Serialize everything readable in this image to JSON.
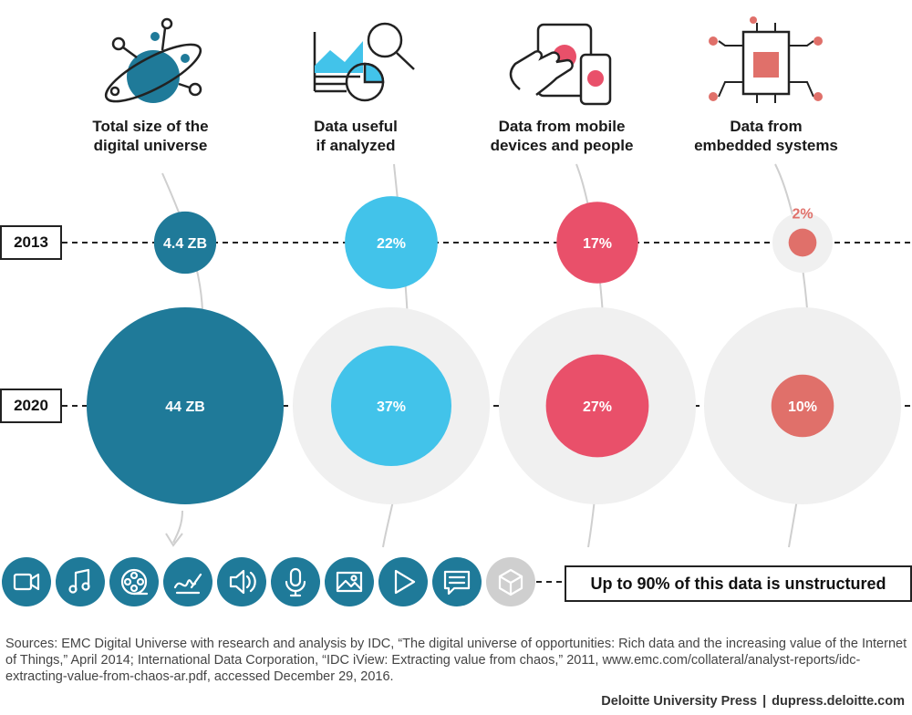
{
  "chart_data": {
    "type": "bubble",
    "categories": [
      "Total size of the digital universe",
      "Data useful if analyzed",
      "Data from mobile devices and people",
      "Data from embedded systems"
    ],
    "years": [
      "2013",
      "2020"
    ],
    "series": [
      {
        "year": "2013",
        "values": [
          4.4,
          22,
          17,
          2
        ],
        "labels": [
          "4.4 ZB",
          "22%",
          "17%",
          "2%"
        ]
      },
      {
        "year": "2020",
        "values": [
          44,
          37,
          27,
          10
        ],
        "labels": [
          "44 ZB",
          "37%",
          "27%",
          "10%"
        ]
      }
    ],
    "units": [
      "ZB",
      "%",
      "%",
      "%"
    ]
  },
  "columns": [
    {
      "title_line1": "Total size of the",
      "title_line2": "digital universe",
      "color": "#1f7a99"
    },
    {
      "title_line1": "Data useful",
      "title_line2": "if analyzed",
      "color": "#42c3ea"
    },
    {
      "title_line1": "Data from mobile",
      "title_line2": "devices and people",
      "color": "#e9506a"
    },
    {
      "title_line1": "Data from",
      "title_line2": "embedded systems",
      "color": "#e0706a"
    }
  ],
  "year_2013": "2013",
  "year_2020": "2020",
  "data_type_icons": [
    "video-camera-icon",
    "music-note-icon",
    "film-reel-icon",
    "signature-pen-icon",
    "speaker-icon",
    "microphone-icon",
    "image-icon",
    "play-icon",
    "chat-bubble-icon",
    "cube-icon"
  ],
  "callout": "Up to 90% of this data is unstructured",
  "sources": "Sources: EMC Digital Universe with research and analysis by IDC, “The digital universe of opportunities: Rich data and the increasing value of the Internet of Things,” April 2014; International Data Corporation, “IDC iView: Extracting value from chaos,” 2011, www.emc.com/collateral/analyst-reports/idc-extracting-value-from-chaos-ar.pdf, accessed December 29, 2016.",
  "footer": {
    "publisher": "Deloitte University Press",
    "separator": "|",
    "site": "dupress.deloitte.com"
  }
}
